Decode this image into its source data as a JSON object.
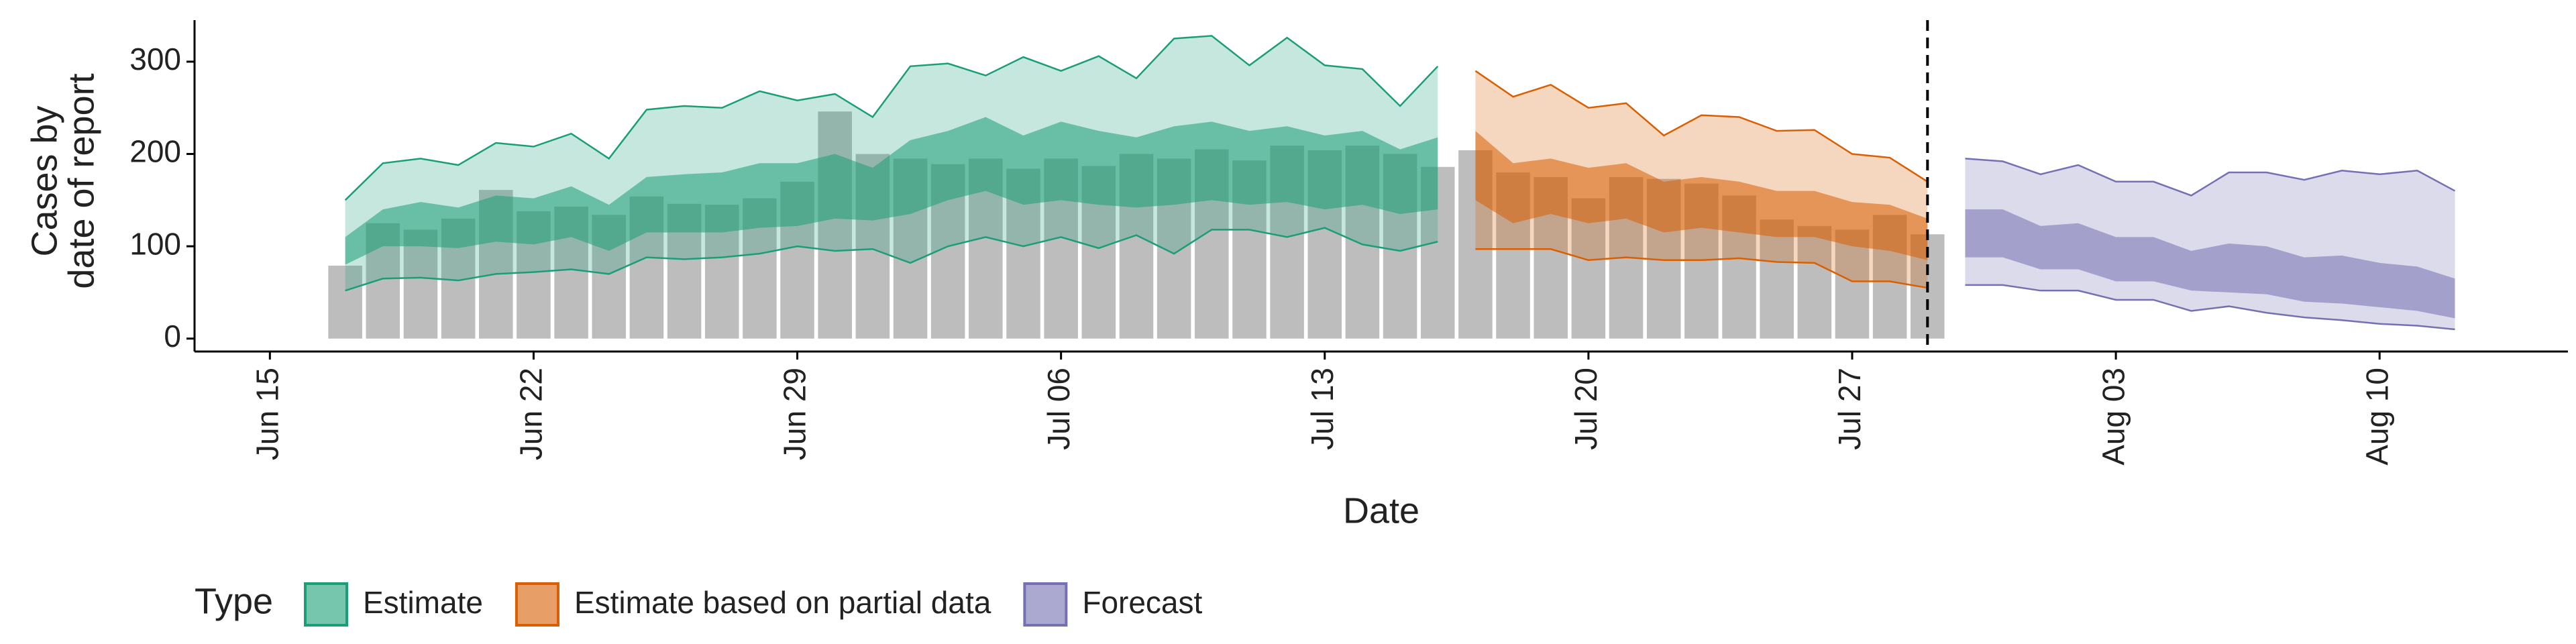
{
  "chart_data": {
    "type": "ribbon",
    "xlabel": "Date",
    "ylabel": [
      "Cases by",
      "date of report"
    ],
    "xlim": [
      "Jun 13",
      "Aug 15"
    ],
    "xticks": [
      "Jun 15",
      "Jun 22",
      "Jun 29",
      "Jul 06",
      "Jul 13",
      "Jul 20",
      "Jul 27",
      "Aug 03",
      "Aug 10"
    ],
    "ylim": [
      -14,
      345
    ],
    "yticks": [
      0,
      100,
      200,
      300
    ],
    "vline": "Jul 29",
    "legend_title": "Type",
    "bars": {
      "color": "#bdbdbd",
      "x": [
        "Jun 17",
        "Jun 18",
        "Jun 19",
        "Jun 20",
        "Jun 21",
        "Jun 22",
        "Jun 23",
        "Jun 24",
        "Jun 25",
        "Jun 26",
        "Jun 27",
        "Jun 28",
        "Jun 29",
        "Jun 30",
        "Jul 01",
        "Jul 02",
        "Jul 03",
        "Jul 04",
        "Jul 05",
        "Jul 06",
        "Jul 07",
        "Jul 08",
        "Jul 09",
        "Jul 10",
        "Jul 11",
        "Jul 12",
        "Jul 13",
        "Jul 14",
        "Jul 15",
        "Jul 16",
        "Jul 17",
        "Jul 18",
        "Jul 19",
        "Jul 20",
        "Jul 21",
        "Jul 22",
        "Jul 23",
        "Jul 24",
        "Jul 25",
        "Jul 26",
        "Jul 27",
        "Jul 28",
        "Jul 29"
      ],
      "values": [
        79,
        125,
        118,
        130,
        161,
        138,
        143,
        134,
        154,
        146,
        145,
        152,
        170,
        246,
        200,
        195,
        189,
        195,
        184,
        195,
        187,
        200,
        195,
        205,
        193,
        209,
        204,
        209,
        200,
        186,
        204,
        180,
        175,
        152,
        175,
        173,
        168,
        155,
        129,
        122,
        118,
        134,
        113
      ]
    },
    "ribbons": [
      {
        "name": "Estimate",
        "color": "#1b9e77",
        "x": [
          "Jun 17",
          "Jun 18",
          "Jun 19",
          "Jun 20",
          "Jun 21",
          "Jun 22",
          "Jun 23",
          "Jun 24",
          "Jun 25",
          "Jun 26",
          "Jun 27",
          "Jun 28",
          "Jun 29",
          "Jun 30",
          "Jul 01",
          "Jul 02",
          "Jul 03",
          "Jul 04",
          "Jul 05",
          "Jul 06",
          "Jul 07",
          "Jul 08",
          "Jul 09",
          "Jul 10",
          "Jul 11",
          "Jul 12",
          "Jul 13",
          "Jul 14",
          "Jul 15",
          "Jul 16"
        ],
        "lower_90": [
          52,
          65,
          66,
          63,
          70,
          72,
          75,
          70,
          88,
          86,
          88,
          92,
          100,
          95,
          97,
          82,
          100,
          110,
          100,
          110,
          98,
          112,
          92,
          118,
          118,
          110,
          120,
          102,
          95,
          105
        ],
        "lower_50": [
          80,
          100,
          100,
          98,
          105,
          102,
          110,
          95,
          115,
          115,
          115,
          120,
          122,
          130,
          128,
          135,
          150,
          160,
          145,
          150,
          145,
          142,
          145,
          150,
          145,
          148,
          140,
          145,
          135,
          140
        ],
        "upper_50": [
          110,
          140,
          148,
          142,
          155,
          152,
          165,
          145,
          175,
          178,
          180,
          190,
          190,
          200,
          185,
          215,
          225,
          240,
          220,
          235,
          225,
          218,
          230,
          235,
          225,
          230,
          220,
          225,
          205,
          218
        ],
        "upper_90": [
          150,
          190,
          195,
          188,
          212,
          208,
          222,
          195,
          248,
          252,
          250,
          268,
          258,
          265,
          240,
          295,
          298,
          285,
          305,
          290,
          306,
          282,
          325,
          328,
          296,
          326,
          296,
          292,
          252,
          295
        ]
      },
      {
        "name": "Estimate based on partial data",
        "color": "#d95f02",
        "x": [
          "Jul 17",
          "Jul 18",
          "Jul 19",
          "Jul 20",
          "Jul 21",
          "Jul 22",
          "Jul 23",
          "Jul 24",
          "Jul 25",
          "Jul 26",
          "Jul 27",
          "Jul 28",
          "Jul 29"
        ],
        "lower_90": [
          97,
          97,
          97,
          85,
          88,
          85,
          85,
          87,
          83,
          82,
          62,
          62,
          55
        ],
        "lower_50": [
          150,
          125,
          135,
          125,
          130,
          115,
          120,
          115,
          110,
          110,
          100,
          95,
          85
        ],
        "upper_50": [
          225,
          190,
          195,
          185,
          190,
          170,
          175,
          170,
          160,
          160,
          148,
          145,
          130
        ],
        "upper_90": [
          290,
          262,
          275,
          250,
          255,
          220,
          242,
          240,
          225,
          226,
          200,
          196,
          170
        ]
      },
      {
        "name": "Forecast",
        "color": "#7570b3",
        "x": [
          "Jul 30",
          "Jul 31",
          "Aug 01",
          "Aug 02",
          "Aug 03",
          "Aug 04",
          "Aug 05",
          "Aug 06",
          "Aug 07",
          "Aug 08",
          "Aug 09",
          "Aug 10",
          "Aug 11",
          "Aug 12"
        ],
        "lower_90": [
          58,
          58,
          52,
          52,
          42,
          42,
          30,
          35,
          28,
          23,
          20,
          16,
          14,
          10
        ],
        "lower_50": [
          88,
          88,
          75,
          75,
          62,
          62,
          52,
          50,
          48,
          40,
          38,
          34,
          30,
          22
        ],
        "upper_50": [
          140,
          140,
          122,
          125,
          110,
          110,
          95,
          103,
          100,
          88,
          90,
          82,
          78,
          65
        ],
        "upper_90": [
          195,
          192,
          178,
          188,
          170,
          170,
          155,
          180,
          180,
          172,
          182,
          178,
          182,
          160
        ]
      }
    ]
  }
}
